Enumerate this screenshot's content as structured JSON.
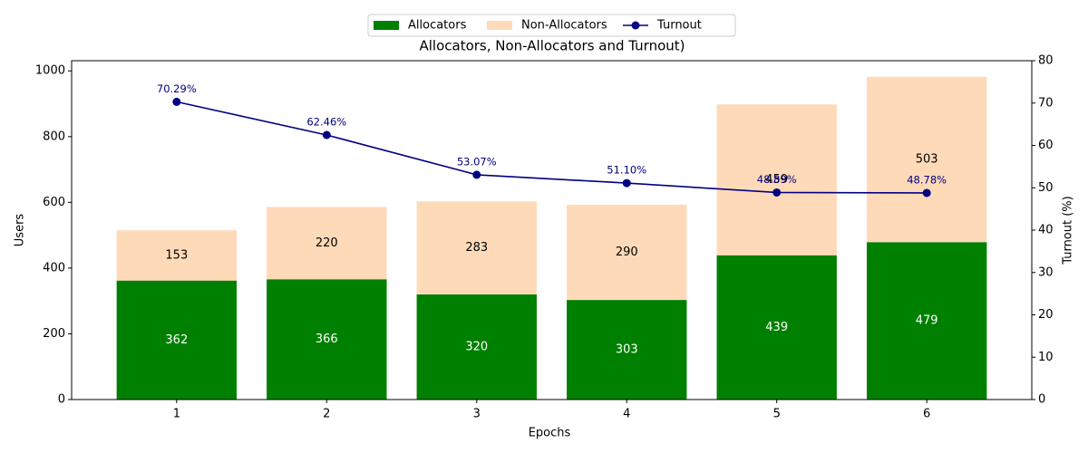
{
  "chart_data": {
    "type": "bar",
    "stacked": true,
    "title": "Allocators, Non-Allocators and Turnout)",
    "x_label": "Epochs",
    "y_label": "Users",
    "y2_label": "Turnout (%)",
    "categories": [
      "1",
      "2",
      "3",
      "4",
      "5",
      "6"
    ],
    "series": [
      {
        "name": "Allocators",
        "type": "bar",
        "color": "#008000",
        "label_color": "#ffffff",
        "values": [
          362,
          366,
          320,
          303,
          439,
          479
        ]
      },
      {
        "name": "Non-Allocators",
        "type": "bar",
        "color": "#ffdab9",
        "label_color": "#000000",
        "values": [
          153,
          220,
          283,
          290,
          459,
          503
        ]
      },
      {
        "name": "Turnout",
        "type": "line",
        "axis": "y2",
        "color": "#000080",
        "values": [
          70.29,
          62.46,
          53.07,
          51.1,
          48.89,
          48.78
        ],
        "value_labels": [
          "70.29%",
          "62.46%",
          "53.07%",
          "51.10%",
          "48.89%",
          "48.78%"
        ]
      }
    ],
    "ylim": [
      0,
      1031
    ],
    "yticks": [
      0,
      200,
      400,
      600,
      800,
      1000
    ],
    "y2lim": [
      0,
      80
    ],
    "y2ticks": [
      0,
      10,
      20,
      30,
      40,
      50,
      60,
      70,
      80
    ],
    "legend": "top"
  }
}
